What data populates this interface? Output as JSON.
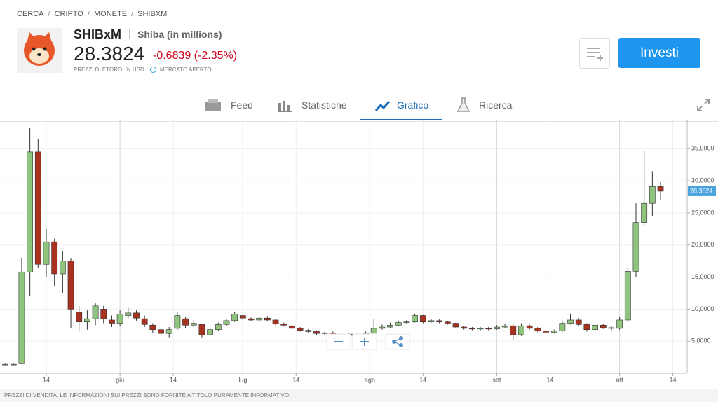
{
  "breadcrumb": [
    "CERCA",
    "CRIPTO",
    "MONETE",
    "SHIBXM"
  ],
  "header": {
    "symbol": "SHIBxM",
    "name": "Shiba (in millions)",
    "price": "28.3824",
    "change": "-0.6839 (-2.35%)",
    "price_note": "PREZZI DI ETORO, IN USD",
    "market_status": "MERCATO APERTO",
    "invest_button": "Investi"
  },
  "tabs": [
    "Feed",
    "Statistiche",
    "Grafico",
    "Ricerca"
  ],
  "chart_data": {
    "type": "candlestick",
    "x": [
      4,
      6,
      8,
      10,
      12,
      14,
      16,
      18,
      20,
      22,
      24,
      26,
      28,
      30,
      32,
      34,
      36,
      38,
      40,
      42,
      44,
      46,
      48,
      50,
      52,
      54,
      56,
      58,
      60,
      62,
      64,
      66,
      68,
      70,
      72,
      74,
      76,
      78,
      80,
      82,
      84,
      86,
      88,
      90,
      92,
      94,
      96,
      98,
      100,
      102,
      104,
      106,
      108,
      110,
      112,
      114,
      116,
      118,
      120,
      122,
      124,
      126,
      128,
      130,
      132,
      134,
      136,
      138,
      140,
      142,
      144,
      146,
      148,
      150,
      152,
      154,
      156,
      158,
      160,
      162,
      164
    ],
    "open": [
      1400,
      1400,
      1500,
      15800,
      34500,
      17000,
      20500,
      15500,
      17500,
      9500,
      8000,
      8500,
      10000,
      8300,
      7800,
      9000,
      9400,
      8500,
      7500,
      6800,
      6200,
      7000,
      8500,
      7500,
      7600,
      6000,
      6800,
      7600,
      8200,
      9000,
      8500,
      8300,
      8600,
      8300,
      7700,
      7400,
      7000,
      6700,
      6500,
      6200,
      6300,
      6000,
      6100,
      5900,
      6000,
      6300,
      7000,
      7200,
      7500,
      7900,
      8000,
      9000,
      8000,
      8200,
      8000,
      7800,
      7200,
      7000,
      6900,
      7000,
      6900,
      7200,
      7400,
      6000,
      7400,
      7000,
      6600,
      6400,
      6600,
      7800,
      8300,
      7600,
      6800,
      7500,
      7100,
      7000,
      8300,
      15900,
      23500,
      26500,
      29100
    ],
    "high": [
      1500,
      1500,
      18000,
      38200,
      36500,
      22500,
      21000,
      19000,
      18000,
      10500,
      9800,
      11000,
      10500,
      9000,
      9800,
      10200,
      9800,
      9000,
      7800,
      7100,
      7200,
      9500,
      8800,
      8300,
      7700,
      7000,
      7900,
      8500,
      9500,
      9200,
      8700,
      8800,
      8900,
      8400,
      7900,
      7600,
      7200,
      6900,
      6700,
      6500,
      6500,
      6300,
      6300,
      6200,
      6500,
      8500,
      7600,
      7900,
      8200,
      8300,
      9300,
      9100,
      8500,
      8400,
      8200,
      7900,
      7400,
      7200,
      7200,
      7200,
      7500,
      7700,
      7600,
      7800,
      7600,
      7200,
      6800,
      6800,
      8200,
      9300,
      8600,
      7800,
      7800,
      7700,
      7300,
      8800,
      16500,
      26500,
      34800,
      31500,
      29800
    ],
    "low": [
      1300,
      1300,
      1400,
      12000,
      16500,
      15000,
      13500,
      12500,
      7000,
      6500,
      6800,
      7500,
      7800,
      7200,
      7400,
      8600,
      8200,
      7200,
      6300,
      5800,
      5600,
      6800,
      7000,
      7200,
      5600,
      5800,
      6600,
      7400,
      8000,
      8300,
      8100,
      8100,
      8100,
      7500,
      7300,
      6800,
      6500,
      6300,
      6000,
      5900,
      5900,
      5800,
      5700,
      5700,
      5800,
      6100,
      6800,
      7000,
      7300,
      7700,
      7900,
      7800,
      7900,
      7800,
      7600,
      7000,
      6800,
      6700,
      6700,
      6700,
      6800,
      7000,
      5200,
      5800,
      6800,
      6400,
      6200,
      6200,
      6400,
      7600,
      7300,
      6500,
      6600,
      6900,
      6700,
      6800,
      8000,
      15000,
      23000,
      24500,
      27000
    ],
    "close": [
      1400,
      1400,
      15800,
      34500,
      17000,
      20500,
      15500,
      17500,
      10000,
      8000,
      8500,
      10500,
      8500,
      7800,
      9200,
      9400,
      8600,
      7600,
      6800,
      6200,
      6800,
      9000,
      7500,
      7800,
      6000,
      6800,
      7600,
      8200,
      9200,
      8600,
      8300,
      8600,
      8300,
      7700,
      7500,
      7000,
      6700,
      6500,
      6200,
      6300,
      6000,
      6100,
      5900,
      6000,
      6300,
      7000,
      7200,
      7500,
      7900,
      8000,
      9000,
      8000,
      8200,
      8000,
      7800,
      7200,
      7000,
      6900,
      7000,
      6900,
      7200,
      7400,
      6000,
      7400,
      7000,
      6600,
      6400,
      6600,
      7800,
      8300,
      7600,
      6800,
      7500,
      7100,
      7000,
      8300,
      15900,
      23500,
      26500,
      29100,
      28382.4
    ],
    "up_color": "#8fc47e",
    "down_color": "#a8321f",
    "last_price_label": "28,3824",
    "xlim": [
      2.7,
      170.5
    ],
    "xticks": [
      {
        "value": 14,
        "label": "14"
      },
      {
        "value": 32,
        "label": "giu"
      },
      {
        "value": 45,
        "label": "14"
      },
      {
        "value": 62,
        "label": "lug"
      },
      {
        "value": 75,
        "label": "14"
      },
      {
        "value": 93,
        "label": "ago"
      },
      {
        "value": 106,
        "label": "14"
      },
      {
        "value": 124,
        "label": "set"
      },
      {
        "value": 137,
        "label": "14"
      },
      {
        "value": 154,
        "label": "ott"
      },
      {
        "value": 167,
        "label": "14"
      }
    ],
    "ylim": [
      0,
      39400
    ],
    "yticks": [
      {
        "value": 5000,
        "label": "5,0000"
      },
      {
        "value": 10000,
        "label": "10,0000"
      },
      {
        "value": 15000,
        "label": "15,0000"
      },
      {
        "value": 20000,
        "label": "20,0000"
      },
      {
        "value": 25000,
        "label": "25,0000"
      },
      {
        "value": 30000,
        "label": "30,0000"
      },
      {
        "value": 35000,
        "label": "35,0000"
      }
    ],
    "grid": true
  },
  "footer": "PREZZI DI VENDITA. LE INFORMAZIONI SUI PREZZI SONO FORNITE A TITOLO PURAMENTE INFORMATIVO."
}
